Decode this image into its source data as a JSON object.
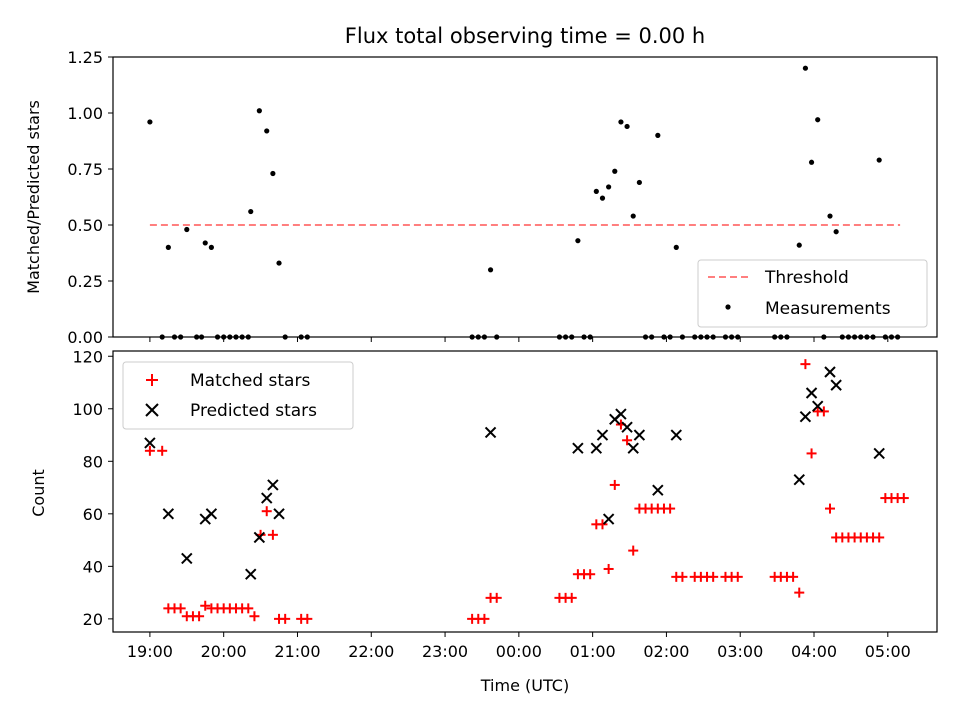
{
  "title": "Flux total observing time = 0.00 h",
  "chart_data": [
    {
      "type": "scatter",
      "title": "Flux total observing time = 0.00 h",
      "xlabel": "",
      "ylabel": "Matched/Predicted stars",
      "xlim": [
        "18:30",
        "05:40"
      ],
      "ylim": [
        0,
        1.25
      ],
      "yticks": [
        "0.00",
        "0.25",
        "0.50",
        "0.75",
        "1.00",
        "1.25"
      ],
      "xticks": [
        "19:00",
        "20:00",
        "21:00",
        "22:00",
        "23:00",
        "00:00",
        "01:00",
        "02:00",
        "03:00",
        "04:00",
        "05:00"
      ],
      "show_xticklabels": false,
      "threshold": {
        "name": "Threshold",
        "value": 0.5,
        "x_start": "19:00",
        "x_end": "05:10",
        "color": "#ff7f7f",
        "style": "dashed"
      },
      "legend": {
        "position": "lower-right",
        "entries": [
          "Threshold",
          "Measurements"
        ]
      },
      "series": [
        {
          "name": "Measurements",
          "color": "#000000",
          "marker": "dot",
          "points": [
            [
              "19:00",
              0.96
            ],
            [
              "19:15",
              0.4
            ],
            [
              "19:30",
              0.48
            ],
            [
              "19:45",
              0.42
            ],
            [
              "19:50",
              0.4
            ],
            [
              "20:22",
              0.56
            ],
            [
              "20:29",
              1.01
            ],
            [
              "20:35",
              0.92
            ],
            [
              "20:40",
              0.73
            ],
            [
              "20:45",
              0.33
            ],
            [
              "23:37",
              0.3
            ],
            [
              "00:48",
              0.43
            ],
            [
              "01:03",
              0.65
            ],
            [
              "01:08",
              0.62
            ],
            [
              "01:13",
              0.67
            ],
            [
              "01:18",
              0.74
            ],
            [
              "01:23",
              0.96
            ],
            [
              "01:28",
              0.94
            ],
            [
              "01:33",
              0.54
            ],
            [
              "01:38",
              0.69
            ],
            [
              "01:53",
              0.9
            ],
            [
              "02:08",
              0.4
            ],
            [
              "03:48",
              0.41
            ],
            [
              "03:53",
              1.2
            ],
            [
              "03:58",
              0.78
            ],
            [
              "04:03",
              0.97
            ],
            [
              "04:13",
              0.54
            ],
            [
              "04:18",
              0.47
            ],
            [
              "04:53",
              0.79
            ],
            [
              "19:10",
              0
            ],
            [
              "19:20",
              0
            ],
            [
              "19:25",
              0
            ],
            [
              "19:38",
              0
            ],
            [
              "19:42",
              0
            ],
            [
              "19:55",
              0
            ],
            [
              "20:00",
              0
            ],
            [
              "20:05",
              0
            ],
            [
              "20:10",
              0
            ],
            [
              "20:15",
              0
            ],
            [
              "20:20",
              0
            ],
            [
              "20:50",
              0
            ],
            [
              "21:03",
              0
            ],
            [
              "21:08",
              0
            ],
            [
              "23:22",
              0
            ],
            [
              "23:27",
              0
            ],
            [
              "23:32",
              0
            ],
            [
              "23:42",
              0
            ],
            [
              "00:33",
              0
            ],
            [
              "00:38",
              0
            ],
            [
              "00:43",
              0
            ],
            [
              "00:53",
              0
            ],
            [
              "00:58",
              0
            ],
            [
              "01:43",
              0
            ],
            [
              "01:48",
              0
            ],
            [
              "01:58",
              0
            ],
            [
              "02:03",
              0
            ],
            [
              "02:13",
              0
            ],
            [
              "02:23",
              0
            ],
            [
              "02:28",
              0
            ],
            [
              "02:33",
              0
            ],
            [
              "02:38",
              0
            ],
            [
              "02:48",
              0
            ],
            [
              "02:53",
              0
            ],
            [
              "02:58",
              0
            ],
            [
              "03:28",
              0
            ],
            [
              "03:33",
              0
            ],
            [
              "03:38",
              0
            ],
            [
              "04:08",
              0
            ],
            [
              "04:23",
              0
            ],
            [
              "04:28",
              0
            ],
            [
              "04:33",
              0
            ],
            [
              "04:38",
              0
            ],
            [
              "04:43",
              0
            ],
            [
              "04:48",
              0
            ],
            [
              "04:58",
              0
            ],
            [
              "05:03",
              0
            ],
            [
              "05:08",
              0
            ]
          ]
        }
      ]
    },
    {
      "type": "scatter",
      "title": "",
      "xlabel": "Time (UTC)",
      "ylabel": "Count",
      "xlim": [
        "18:30",
        "05:40"
      ],
      "ylim": [
        15,
        122
      ],
      "yticks": [
        "20",
        "40",
        "60",
        "80",
        "100",
        "120"
      ],
      "xticks": [
        "19:00",
        "20:00",
        "21:00",
        "22:00",
        "23:00",
        "00:00",
        "01:00",
        "02:00",
        "03:00",
        "04:00",
        "05:00"
      ],
      "legend": {
        "position": "upper-left",
        "entries": [
          "Matched stars",
          "Predicted stars"
        ]
      },
      "series": [
        {
          "name": "Matched stars",
          "color": "#ff0000",
          "marker": "plus",
          "points": [
            [
              "19:00",
              84
            ],
            [
              "19:10",
              84
            ],
            [
              "19:15",
              24
            ],
            [
              "19:20",
              24
            ],
            [
              "19:25",
              24
            ],
            [
              "19:30",
              21
            ],
            [
              "19:35",
              21
            ],
            [
              "19:40",
              21
            ],
            [
              "19:45",
              25
            ],
            [
              "19:50",
              24
            ],
            [
              "19:55",
              24
            ],
            [
              "20:00",
              24
            ],
            [
              "20:05",
              24
            ],
            [
              "20:10",
              24
            ],
            [
              "20:15",
              24
            ],
            [
              "20:20",
              24
            ],
            [
              "20:25",
              21
            ],
            [
              "20:30",
              52
            ],
            [
              "20:35",
              61
            ],
            [
              "20:40",
              52
            ],
            [
              "20:45",
              20
            ],
            [
              "20:50",
              20
            ],
            [
              "21:03",
              20
            ],
            [
              "21:08",
              20
            ],
            [
              "23:22",
              20
            ],
            [
              "23:27",
              20
            ],
            [
              "23:32",
              20
            ],
            [
              "23:37",
              28
            ],
            [
              "23:42",
              28
            ],
            [
              "00:33",
              28
            ],
            [
              "00:38",
              28
            ],
            [
              "00:43",
              28
            ],
            [
              "00:48",
              37
            ],
            [
              "00:53",
              37
            ],
            [
              "00:58",
              37
            ],
            [
              "01:03",
              56
            ],
            [
              "01:08",
              56
            ],
            [
              "01:13",
              39
            ],
            [
              "01:18",
              71
            ],
            [
              "01:23",
              94
            ],
            [
              "01:28",
              88
            ],
            [
              "01:33",
              46
            ],
            [
              "01:38",
              62
            ],
            [
              "01:43",
              62
            ],
            [
              "01:48",
              62
            ],
            [
              "01:53",
              62
            ],
            [
              "01:58",
              62
            ],
            [
              "02:03",
              62
            ],
            [
              "02:08",
              36
            ],
            [
              "02:13",
              36
            ],
            [
              "02:23",
              36
            ],
            [
              "02:28",
              36
            ],
            [
              "02:33",
              36
            ],
            [
              "02:38",
              36
            ],
            [
              "02:48",
              36
            ],
            [
              "02:53",
              36
            ],
            [
              "02:58",
              36
            ],
            [
              "03:28",
              36
            ],
            [
              "03:33",
              36
            ],
            [
              "03:38",
              36
            ],
            [
              "03:43",
              36
            ],
            [
              "03:48",
              30
            ],
            [
              "03:53",
              117
            ],
            [
              "03:58",
              83
            ],
            [
              "04:03",
              99
            ],
            [
              "04:08",
              99
            ],
            [
              "04:13",
              62
            ],
            [
              "04:18",
              51
            ],
            [
              "04:23",
              51
            ],
            [
              "04:28",
              51
            ],
            [
              "04:33",
              51
            ],
            [
              "04:38",
              51
            ],
            [
              "04:43",
              51
            ],
            [
              "04:48",
              51
            ],
            [
              "04:53",
              51
            ],
            [
              "04:58",
              66
            ],
            [
              "05:03",
              66
            ],
            [
              "05:08",
              66
            ],
            [
              "05:13",
              66
            ]
          ]
        },
        {
          "name": "Predicted stars",
          "color": "#000000",
          "marker": "x",
          "points": [
            [
              "19:00",
              87
            ],
            [
              "19:15",
              60
            ],
            [
              "19:30",
              43
            ],
            [
              "19:45",
              58
            ],
            [
              "19:50",
              60
            ],
            [
              "20:22",
              37
            ],
            [
              "20:29",
              51
            ],
            [
              "20:35",
              66
            ],
            [
              "20:40",
              71
            ],
            [
              "20:45",
              60
            ],
            [
              "23:37",
              91
            ],
            [
              "00:48",
              85
            ],
            [
              "01:03",
              85
            ],
            [
              "01:08",
              90
            ],
            [
              "01:13",
              58
            ],
            [
              "01:18",
              96
            ],
            [
              "01:23",
              98
            ],
            [
              "01:28",
              93
            ],
            [
              "01:33",
              85
            ],
            [
              "01:38",
              90
            ],
            [
              "01:53",
              69
            ],
            [
              "02:08",
              90
            ],
            [
              "03:48",
              73
            ],
            [
              "03:53",
              97
            ],
            [
              "03:58",
              106
            ],
            [
              "04:03",
              101
            ],
            [
              "04:13",
              114
            ],
            [
              "04:18",
              109
            ],
            [
              "04:53",
              83
            ]
          ]
        }
      ]
    }
  ]
}
